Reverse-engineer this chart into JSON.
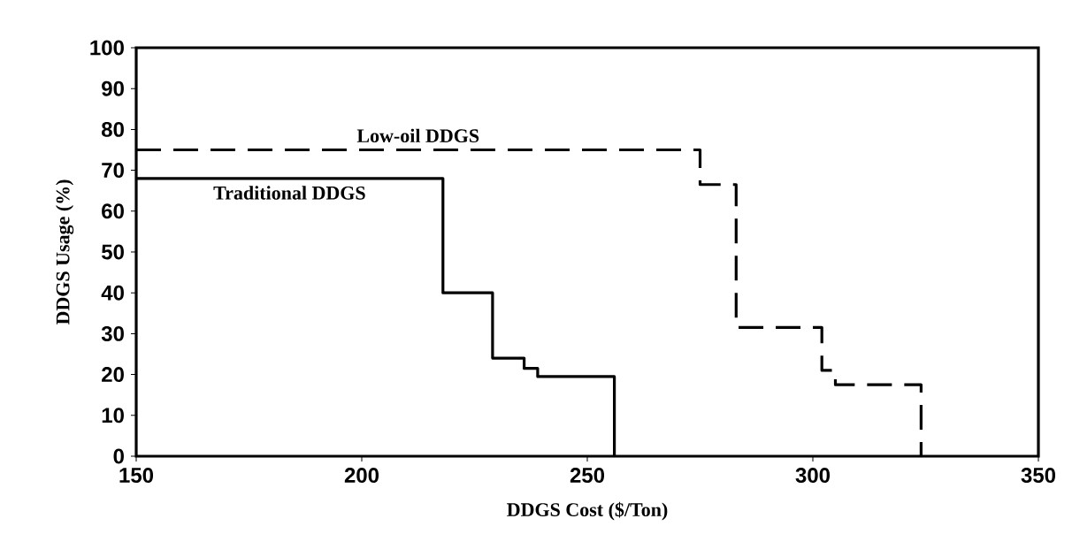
{
  "chart_data": {
    "type": "step",
    "xlabel": "DDGS Cost ($/Ton)",
    "ylabel": "DDGS Usage (%)",
    "xlim": [
      150,
      350
    ],
    "xticks": [
      150,
      200,
      250,
      300,
      350
    ],
    "ylim": [
      0,
      100
    ],
    "yticks": [
      0,
      10,
      20,
      30,
      40,
      50,
      60,
      70,
      80,
      90,
      100
    ],
    "grid": false,
    "series": [
      {
        "name": "Traditional DDGS",
        "color": "#000000",
        "line_style": "solid",
        "x": [
          150,
          218,
          229,
          236,
          239,
          256
        ],
        "values": [
          68,
          40,
          24,
          21.5,
          19.5,
          0
        ]
      },
      {
        "name": "Low-oil DDGS",
        "color": "#000000",
        "line_style": "dashed",
        "x": [
          150,
          275,
          283,
          302,
          305,
          324
        ],
        "values": [
          75,
          66.5,
          31.5,
          21,
          17.5,
          0
        ]
      }
    ]
  }
}
